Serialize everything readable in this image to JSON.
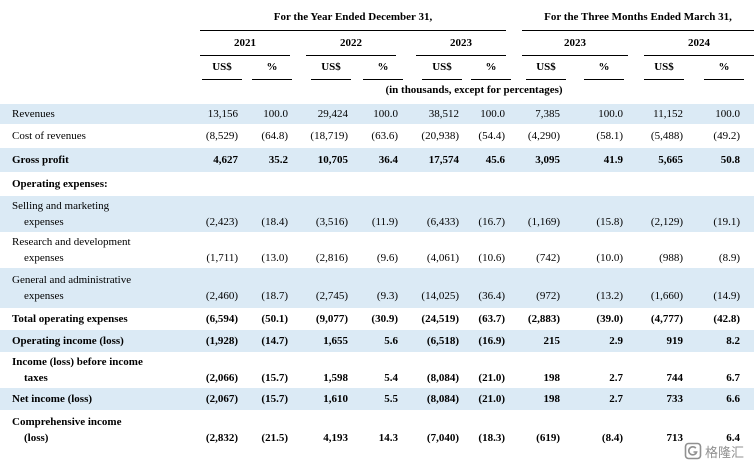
{
  "headers": {
    "year_group": "For the Year Ended December 31,",
    "quarter_group": "For the Three Months Ended March 31,",
    "periods": [
      "2021",
      "2022",
      "2023",
      "2023",
      "2024"
    ],
    "col_us": "US$",
    "col_pct": "%",
    "units_note": "(in thousands, except for percentages)"
  },
  "rows": [
    {
      "label": [
        "Revenues"
      ],
      "bold": false,
      "shade": true,
      "values": [
        "13,156",
        "100.0",
        "29,424",
        "100.0",
        "38,512",
        "100.0",
        "7,385",
        "100.0",
        "11,152",
        "100.0"
      ]
    },
    {
      "label": [
        "Cost of revenues"
      ],
      "bold": false,
      "shade": false,
      "values": [
        "(8,529)",
        "(64.8)",
        "(18,719)",
        "(63.6)",
        "(20,938)",
        "(54.4)",
        "(4,290)",
        "(58.1)",
        "(5,488)",
        "(49.2)"
      ]
    },
    {
      "label": [
        "Gross profit"
      ],
      "bold": true,
      "shade": true,
      "values": [
        "4,627",
        "35.2",
        "10,705",
        "36.4",
        "17,574",
        "45.6",
        "3,095",
        "41.9",
        "5,665",
        "50.8"
      ]
    },
    {
      "label": [
        "Operating expenses:"
      ],
      "bold": true,
      "shade": false,
      "values": []
    },
    {
      "label": [
        "Selling and marketing",
        "expenses"
      ],
      "bold": false,
      "shade": true,
      "values": [
        "(2,423)",
        "(18.4)",
        "(3,516)",
        "(11.9)",
        "(6,433)",
        "(16.7)",
        "(1,169)",
        "(15.8)",
        "(2,129)",
        "(19.1)"
      ]
    },
    {
      "label": [
        "Research and development",
        "expenses"
      ],
      "bold": false,
      "shade": false,
      "values": [
        "(1,711)",
        "(13.0)",
        "(2,816)",
        "(9.6)",
        "(4,061)",
        "(10.6)",
        "(742)",
        "(10.0)",
        "(988)",
        "(8.9)"
      ]
    },
    {
      "label": [
        "General and administrative",
        "expenses"
      ],
      "bold": false,
      "shade": true,
      "values": [
        "(2,460)",
        "(18.7)",
        "(2,745)",
        "(9.3)",
        "(14,025)",
        "(36.4)",
        "(972)",
        "(13.2)",
        "(1,660)",
        "(14.9)"
      ]
    },
    {
      "label": [
        "Total operating expenses"
      ],
      "bold": true,
      "shade": false,
      "values": [
        "(6,594)",
        "(50.1)",
        "(9,077)",
        "(30.9)",
        "(24,519)",
        "(63.7)",
        "(2,883)",
        "(39.0)",
        "(4,777)",
        "(42.8)"
      ]
    },
    {
      "label": [
        "Operating income (loss)"
      ],
      "bold": true,
      "shade": true,
      "values": [
        "(1,928)",
        "(14.7)",
        "1,655",
        "5.6",
        "(6,518)",
        "(16.9)",
        "215",
        "2.9",
        "919",
        "8.2"
      ]
    },
    {
      "label": [
        "Income (loss) before income",
        "taxes"
      ],
      "bold": true,
      "shade": false,
      "values": [
        "(2,066)",
        "(15.7)",
        "1,598",
        "5.4",
        "(8,084)",
        "(21.0)",
        "198",
        "2.7",
        "744",
        "6.7"
      ]
    },
    {
      "label": [
        "Net income (loss)"
      ],
      "bold": true,
      "shade": true,
      "values": [
        "(2,067)",
        "(15.7)",
        "1,610",
        "5.5",
        "(8,084)",
        "(21.0)",
        "198",
        "2.7",
        "733",
        "6.6"
      ]
    },
    {
      "label": [
        "Comprehensive income",
        "(loss)"
      ],
      "bold": true,
      "shade": false,
      "values": [
        "(2,832)",
        "(21.5)",
        "4,193",
        "14.3",
        "(7,040)",
        "(18.3)",
        "(619)",
        "(8.4)",
        "713",
        "6.4"
      ]
    }
  ],
  "watermark": {
    "text": "格隆汇",
    "icon": "gelonghui-logo-icon",
    "color": "#6b6b6b"
  }
}
